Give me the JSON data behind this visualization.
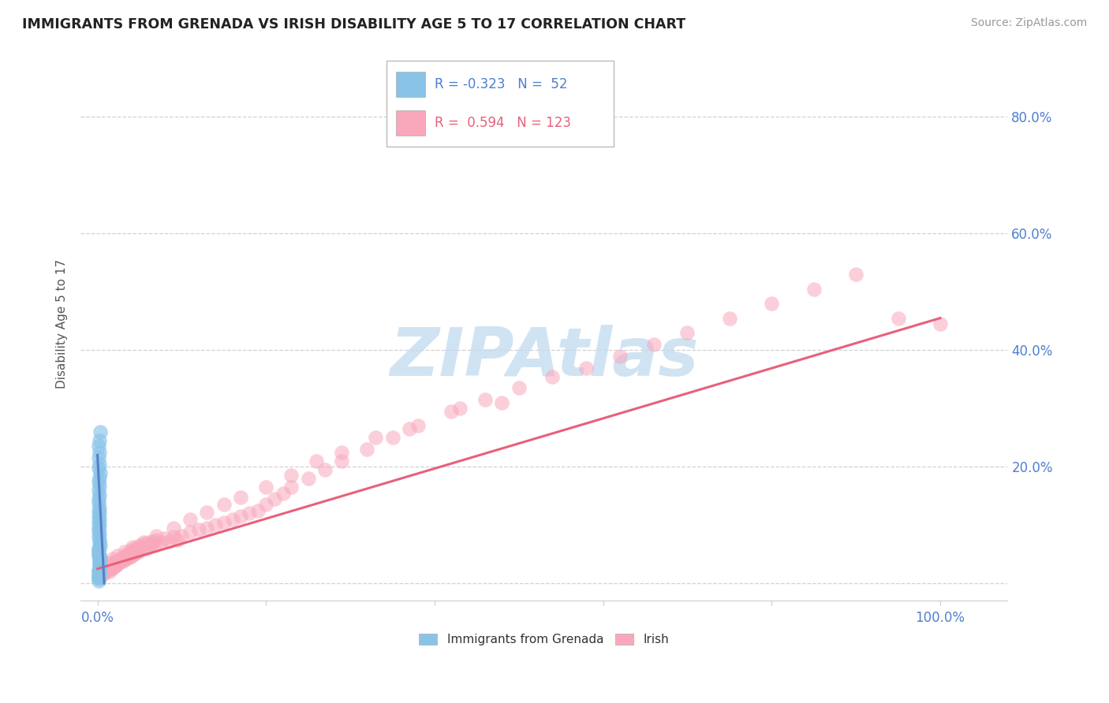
{
  "title": "IMMIGRANTS FROM GRENADA VS IRISH DISABILITY AGE 5 TO 17 CORRELATION CHART",
  "source": "Source: ZipAtlas.com",
  "ylabel": "Disability Age 5 to 17",
  "x_ticks": [
    0.0,
    0.2,
    0.4,
    0.6,
    0.8,
    1.0
  ],
  "x_tick_labels": [
    "0.0%",
    "",
    "",
    "",
    "",
    "100.0%"
  ],
  "y_ticks": [
    0.0,
    0.2,
    0.4,
    0.6,
    0.8
  ],
  "y_tick_labels": [
    "",
    "20.0%",
    "40.0%",
    "60.0%",
    "80.0%"
  ],
  "xlim": [
    -0.02,
    1.08
  ],
  "ylim": [
    -0.03,
    0.92
  ],
  "legend_R_blue": "-0.323",
  "legend_N_blue": "52",
  "legend_R_pink": "0.594",
  "legend_N_pink": "123",
  "blue_scatter_color": "#89C4E8",
  "pink_scatter_color": "#F9A8BC",
  "blue_line_color": "#5580C8",
  "pink_line_color": "#E8607A",
  "tick_label_color": "#4F7FD0",
  "background_color": "#ffffff",
  "watermark_color": "#C5DCF0",
  "pink_scatter_x": [
    0.002,
    0.003,
    0.004,
    0.005,
    0.006,
    0.007,
    0.008,
    0.009,
    0.01,
    0.011,
    0.012,
    0.013,
    0.014,
    0.015,
    0.016,
    0.017,
    0.018,
    0.019,
    0.02,
    0.021,
    0.022,
    0.023,
    0.024,
    0.025,
    0.026,
    0.027,
    0.028,
    0.029,
    0.03,
    0.031,
    0.032,
    0.033,
    0.034,
    0.035,
    0.036,
    0.037,
    0.038,
    0.039,
    0.04,
    0.041,
    0.042,
    0.043,
    0.044,
    0.045,
    0.046,
    0.047,
    0.048,
    0.049,
    0.05,
    0.052,
    0.054,
    0.056,
    0.058,
    0.06,
    0.062,
    0.064,
    0.066,
    0.068,
    0.07,
    0.075,
    0.08,
    0.085,
    0.09,
    0.095,
    0.1,
    0.11,
    0.12,
    0.13,
    0.14,
    0.15,
    0.16,
    0.17,
    0.18,
    0.19,
    0.2,
    0.21,
    0.22,
    0.23,
    0.25,
    0.27,
    0.29,
    0.32,
    0.35,
    0.38,
    0.42,
    0.46,
    0.5,
    0.54,
    0.58,
    0.62,
    0.66,
    0.7,
    0.75,
    0.8,
    0.85,
    0.9,
    0.95,
    1.0,
    0.48,
    0.43,
    0.37,
    0.33,
    0.29,
    0.26,
    0.23,
    0.2,
    0.17,
    0.15,
    0.13,
    0.11,
    0.09,
    0.07,
    0.055,
    0.042,
    0.032,
    0.024,
    0.018,
    0.014,
    0.01,
    0.008,
    0.006,
    0.004
  ],
  "pink_scatter_y": [
    0.015,
    0.012,
    0.018,
    0.02,
    0.015,
    0.022,
    0.018,
    0.02,
    0.025,
    0.022,
    0.028,
    0.025,
    0.02,
    0.03,
    0.025,
    0.028,
    0.032,
    0.028,
    0.035,
    0.03,
    0.038,
    0.032,
    0.035,
    0.04,
    0.035,
    0.038,
    0.042,
    0.038,
    0.045,
    0.04,
    0.042,
    0.048,
    0.042,
    0.05,
    0.045,
    0.048,
    0.052,
    0.045,
    0.055,
    0.048,
    0.058,
    0.05,
    0.052,
    0.06,
    0.055,
    0.058,
    0.062,
    0.055,
    0.065,
    0.058,
    0.062,
    0.068,
    0.06,
    0.07,
    0.065,
    0.068,
    0.072,
    0.065,
    0.075,
    0.07,
    0.078,
    0.072,
    0.08,
    0.075,
    0.082,
    0.088,
    0.092,
    0.095,
    0.1,
    0.105,
    0.11,
    0.115,
    0.12,
    0.125,
    0.135,
    0.145,
    0.155,
    0.165,
    0.18,
    0.195,
    0.21,
    0.23,
    0.25,
    0.27,
    0.295,
    0.315,
    0.335,
    0.355,
    0.37,
    0.39,
    0.41,
    0.43,
    0.455,
    0.48,
    0.505,
    0.53,
    0.455,
    0.445,
    0.31,
    0.3,
    0.265,
    0.25,
    0.225,
    0.21,
    0.185,
    0.165,
    0.148,
    0.135,
    0.122,
    0.11,
    0.095,
    0.082,
    0.07,
    0.062,
    0.055,
    0.048,
    0.042,
    0.035,
    0.03,
    0.025,
    0.02,
    0.015
  ],
  "blue_scatter_x": [
    0.001,
    0.001,
    0.002,
    0.002,
    0.001,
    0.003,
    0.002,
    0.001,
    0.002,
    0.001,
    0.002,
    0.001,
    0.002,
    0.003,
    0.001,
    0.002,
    0.001,
    0.002,
    0.001,
    0.001,
    0.002,
    0.001,
    0.003,
    0.002,
    0.001,
    0.002,
    0.001,
    0.002,
    0.001,
    0.001,
    0.002,
    0.001,
    0.002,
    0.001,
    0.002,
    0.001,
    0.002,
    0.001,
    0.001,
    0.002,
    0.001,
    0.002,
    0.001,
    0.002,
    0.003,
    0.001,
    0.002,
    0.001,
    0.002,
    0.001,
    0.002,
    0.003
  ],
  "blue_scatter_y": [
    0.005,
    0.012,
    0.018,
    0.025,
    0.008,
    0.03,
    0.015,
    0.02,
    0.035,
    0.01,
    0.04,
    0.022,
    0.028,
    0.045,
    0.015,
    0.032,
    0.05,
    0.038,
    0.06,
    0.055,
    0.042,
    0.048,
    0.065,
    0.07,
    0.058,
    0.075,
    0.08,
    0.085,
    0.09,
    0.095,
    0.1,
    0.105,
    0.11,
    0.115,
    0.12,
    0.125,
    0.13,
    0.138,
    0.145,
    0.152,
    0.16,
    0.168,
    0.175,
    0.182,
    0.19,
    0.198,
    0.205,
    0.215,
    0.225,
    0.235,
    0.245,
    0.26
  ],
  "pink_line_x": [
    0.0,
    1.0
  ],
  "pink_line_y": [
    0.025,
    0.455
  ],
  "blue_line_x": [
    0.0,
    0.008
  ],
  "blue_line_y": [
    0.22,
    0.0
  ]
}
